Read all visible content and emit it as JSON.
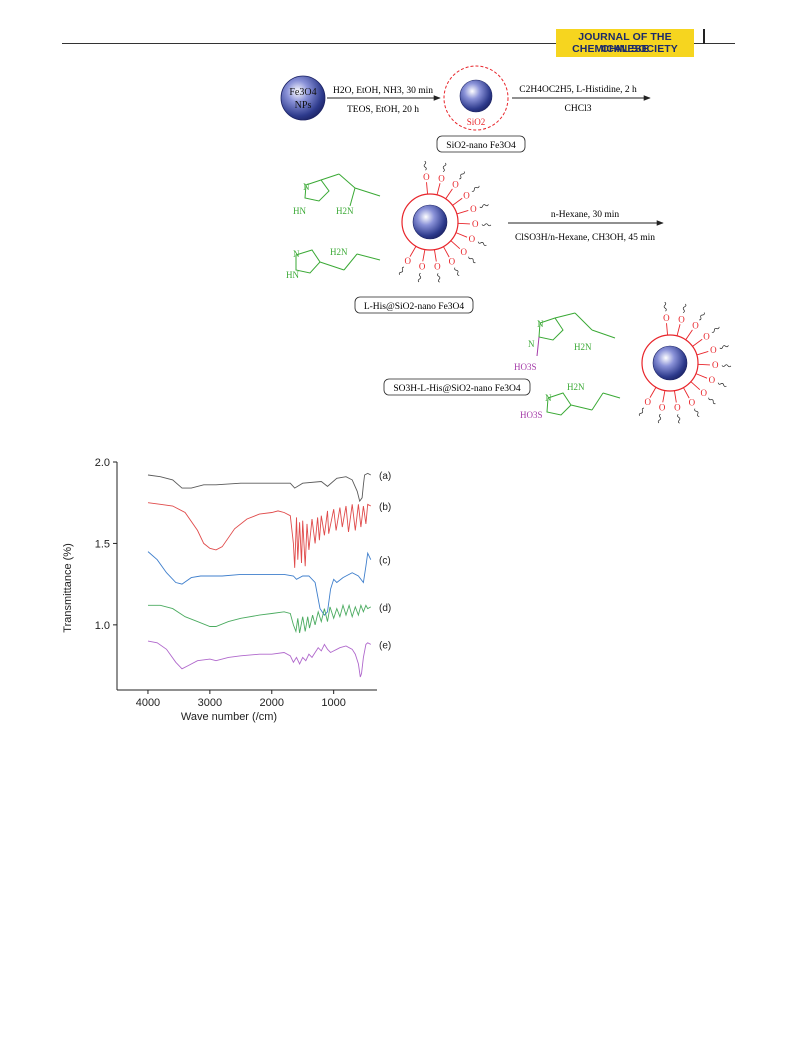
{
  "header": {
    "journal_line1": "JOURNAL OF THE CHINESE",
    "journal_line2": "CHEMICAL SOCIETY"
  },
  "scheme": {
    "start_label_1": "Fe3O4",
    "start_label_2": "NPs",
    "step1_top": "H2O, EtOH, NH3, 30 min",
    "step1_bottom": "TEOS, EtOH, 20 h",
    "silica_shell_label": "SiO2",
    "step2_top": "C2H4OC2H5, L-Histidine, 2 h",
    "step2_bottom": "CHCl3",
    "box1": "SiO2-nano Fe3O4",
    "step3_top": "n-Hexane, 30 min",
    "step3_bottom": "ClSO3H/n-Hexane, CH3OH, 45 min",
    "box2": "L-His@SiO2-nano Fe3O4",
    "box3": "SO3H-L-His@SiO2-nano Fe3O4",
    "atom_O": "O",
    "atom_N": "N",
    "atom_HN": "HN",
    "atom_H2N": "H2N",
    "group_HO3S": "HO3S",
    "colors": {
      "support": "#e8252b",
      "histidine": "#3aa935",
      "sulfonic": "#a43aa8",
      "core": "#2d3a8c"
    }
  },
  "chart_data": {
    "type": "line",
    "xlabel": "Wave number (/cm)",
    "ylabel": "Transmittance (%)",
    "xlim": [
      4500,
      300
    ],
    "ylim": [
      0.6,
      2.0
    ],
    "xticks": [
      4000,
      3000,
      2000,
      1000
    ],
    "xtick_labels": [
      "4000",
      "3000",
      "2000",
      "1000"
    ],
    "yticks": [
      2.0,
      1.5,
      1.0
    ],
    "ytick_labels": [
      "2.0",
      "1.5",
      "1.0"
    ],
    "series": [
      {
        "name": "(a)",
        "color": "#5a5a5a",
        "points": [
          [
            4000,
            1.92
          ],
          [
            3800,
            1.91
          ],
          [
            3600,
            1.89
          ],
          [
            3450,
            1.84
          ],
          [
            3300,
            1.84
          ],
          [
            3100,
            1.86
          ],
          [
            2900,
            1.86
          ],
          [
            2500,
            1.87
          ],
          [
            2000,
            1.87
          ],
          [
            1700,
            1.87
          ],
          [
            1630,
            1.84
          ],
          [
            1500,
            1.87
          ],
          [
            1200,
            1.88
          ],
          [
            1100,
            1.85
          ],
          [
            950,
            1.9
          ],
          [
            800,
            1.91
          ],
          [
            700,
            1.89
          ],
          [
            620,
            1.82
          ],
          [
            580,
            1.76
          ],
          [
            540,
            1.78
          ],
          [
            520,
            1.86
          ],
          [
            500,
            1.92
          ],
          [
            450,
            1.93
          ],
          [
            400,
            1.92
          ]
        ]
      },
      {
        "name": "(b)",
        "color": "#e04b4b",
        "points": [
          [
            4000,
            1.75
          ],
          [
            3800,
            1.74
          ],
          [
            3600,
            1.73
          ],
          [
            3400,
            1.69
          ],
          [
            3200,
            1.58
          ],
          [
            3100,
            1.5
          ],
          [
            3000,
            1.47
          ],
          [
            2900,
            1.46
          ],
          [
            2800,
            1.48
          ],
          [
            2600,
            1.59
          ],
          [
            2400,
            1.65
          ],
          [
            2200,
            1.68
          ],
          [
            2000,
            1.69
          ],
          [
            1900,
            1.7
          ],
          [
            1800,
            1.69
          ],
          [
            1700,
            1.67
          ],
          [
            1650,
            1.5
          ],
          [
            1630,
            1.35
          ],
          [
            1600,
            1.66
          ],
          [
            1580,
            1.4
          ],
          [
            1550,
            1.63
          ],
          [
            1520,
            1.38
          ],
          [
            1500,
            1.64
          ],
          [
            1460,
            1.36
          ],
          [
            1430,
            1.62
          ],
          [
            1400,
            1.46
          ],
          [
            1350,
            1.65
          ],
          [
            1300,
            1.5
          ],
          [
            1260,
            1.66
          ],
          [
            1230,
            1.52
          ],
          [
            1200,
            1.67
          ],
          [
            1150,
            1.55
          ],
          [
            1100,
            1.7
          ],
          [
            1080,
            1.56
          ],
          [
            1000,
            1.71
          ],
          [
            960,
            1.58
          ],
          [
            900,
            1.72
          ],
          [
            860,
            1.6
          ],
          [
            800,
            1.73
          ],
          [
            760,
            1.57
          ],
          [
            700,
            1.74
          ],
          [
            650,
            1.58
          ],
          [
            600,
            1.74
          ],
          [
            560,
            1.6
          ],
          [
            520,
            1.73
          ],
          [
            480,
            1.62
          ],
          [
            450,
            1.74
          ],
          [
            400,
            1.73
          ]
        ]
      },
      {
        "name": "(c)",
        "color": "#3f7fcc",
        "points": [
          [
            4000,
            1.45
          ],
          [
            3850,
            1.4
          ],
          [
            3700,
            1.32
          ],
          [
            3550,
            1.26
          ],
          [
            3450,
            1.25
          ],
          [
            3300,
            1.29
          ],
          [
            3150,
            1.3
          ],
          [
            3000,
            1.3
          ],
          [
            2800,
            1.3
          ],
          [
            2500,
            1.31
          ],
          [
            2200,
            1.31
          ],
          [
            2000,
            1.31
          ],
          [
            1800,
            1.31
          ],
          [
            1650,
            1.3
          ],
          [
            1600,
            1.28
          ],
          [
            1500,
            1.3
          ],
          [
            1400,
            1.3
          ],
          [
            1300,
            1.26
          ],
          [
            1220,
            1.1
          ],
          [
            1150,
            1.06
          ],
          [
            1100,
            1.08
          ],
          [
            1050,
            1.22
          ],
          [
            1000,
            1.28
          ],
          [
            950,
            1.26
          ],
          [
            850,
            1.29
          ],
          [
            800,
            1.3
          ],
          [
            700,
            1.32
          ],
          [
            600,
            1.3
          ],
          [
            520,
            1.26
          ],
          [
            480,
            1.36
          ],
          [
            450,
            1.44
          ],
          [
            400,
            1.4
          ]
        ]
      },
      {
        "name": "(d)",
        "color": "#4bab60",
        "points": [
          [
            4000,
            1.12
          ],
          [
            3800,
            1.12
          ],
          [
            3600,
            1.1
          ],
          [
            3400,
            1.05
          ],
          [
            3200,
            1.02
          ],
          [
            3000,
            0.99
          ],
          [
            2900,
            0.99
          ],
          [
            2700,
            1.02
          ],
          [
            2500,
            1.04
          ],
          [
            2200,
            1.06
          ],
          [
            2000,
            1.07
          ],
          [
            1800,
            1.08
          ],
          [
            1700,
            1.07
          ],
          [
            1650,
            1.0
          ],
          [
            1610,
            0.96
          ],
          [
            1580,
            1.04
          ],
          [
            1550,
            0.95
          ],
          [
            1500,
            1.05
          ],
          [
            1460,
            0.96
          ],
          [
            1420,
            1.05
          ],
          [
            1390,
            0.98
          ],
          [
            1340,
            1.06
          ],
          [
            1300,
            1.0
          ],
          [
            1250,
            1.08
          ],
          [
            1200,
            1.02
          ],
          [
            1150,
            1.1
          ],
          [
            1100,
            1.02
          ],
          [
            1060,
            1.11
          ],
          [
            1000,
            1.04
          ],
          [
            950,
            1.1
          ],
          [
            900,
            1.05
          ],
          [
            850,
            1.12
          ],
          [
            800,
            1.06
          ],
          [
            750,
            1.12
          ],
          [
            700,
            1.05
          ],
          [
            650,
            1.11
          ],
          [
            600,
            1.06
          ],
          [
            560,
            1.12
          ],
          [
            520,
            1.08
          ],
          [
            480,
            1.12
          ],
          [
            450,
            1.1
          ],
          [
            400,
            1.11
          ]
        ]
      },
      {
        "name": "(e)",
        "color": "#b068cc",
        "points": [
          [
            4000,
            0.9
          ],
          [
            3850,
            0.89
          ],
          [
            3700,
            0.85
          ],
          [
            3550,
            0.77
          ],
          [
            3450,
            0.73
          ],
          [
            3350,
            0.75
          ],
          [
            3200,
            0.78
          ],
          [
            3000,
            0.79
          ],
          [
            2900,
            0.78
          ],
          [
            2700,
            0.8
          ],
          [
            2500,
            0.81
          ],
          [
            2200,
            0.82
          ],
          [
            2000,
            0.82
          ],
          [
            1800,
            0.83
          ],
          [
            1700,
            0.81
          ],
          [
            1650,
            0.77
          ],
          [
            1600,
            0.8
          ],
          [
            1550,
            0.76
          ],
          [
            1500,
            0.8
          ],
          [
            1450,
            0.78
          ],
          [
            1400,
            0.82
          ],
          [
            1350,
            0.8
          ],
          [
            1300,
            0.83
          ],
          [
            1250,
            0.86
          ],
          [
            1200,
            0.84
          ],
          [
            1150,
            0.88
          ],
          [
            1100,
            0.85
          ],
          [
            1050,
            0.83
          ],
          [
            1000,
            0.84
          ],
          [
            950,
            0.85
          ],
          [
            900,
            0.86
          ],
          [
            800,
            0.87
          ],
          [
            700,
            0.85
          ],
          [
            650,
            0.82
          ],
          [
            600,
            0.76
          ],
          [
            570,
            0.68
          ],
          [
            550,
            0.7
          ],
          [
            520,
            0.8
          ],
          [
            480,
            0.88
          ],
          [
            450,
            0.89
          ],
          [
            400,
            0.88
          ]
        ]
      }
    ]
  }
}
